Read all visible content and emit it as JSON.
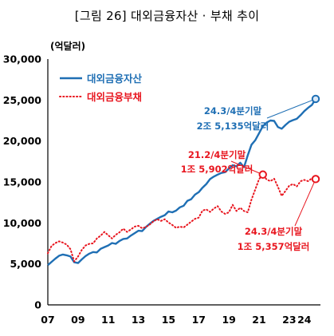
{
  "chart_data": {
    "type": "line",
    "title": "[그림 26] 대외금융자산 · 부채 추이",
    "unit_label": "(억달러)",
    "ylim": [
      0,
      30000
    ],
    "y_ticks": [
      "0",
      "5,000",
      "10,000",
      "15,000",
      "20,000",
      "25,000",
      "30,000"
    ],
    "y_tick_values": [
      0,
      5000,
      10000,
      15000,
      20000,
      25000,
      30000
    ],
    "xlim": [
      2007,
      2024.75
    ],
    "x_ticks": [
      "07",
      "09",
      "11",
      "13",
      "15",
      "17",
      "19",
      "21",
      "23",
      "24"
    ],
    "x_tick_values": [
      2007,
      2009,
      2011,
      2013,
      2015,
      2017,
      2019,
      2021,
      2023,
      2024
    ],
    "legend_position": "top-left",
    "series": [
      {
        "name": "대외금융자산",
        "color": "#1f6fb4",
        "style": "solid",
        "x": [
          2007.0,
          2007.25,
          2007.5,
          2007.75,
          2008.0,
          2008.25,
          2008.5,
          2008.75,
          2009.0,
          2009.25,
          2009.5,
          2009.75,
          2010.0,
          2010.25,
          2010.5,
          2010.75,
          2011.0,
          2011.25,
          2011.5,
          2011.75,
          2012.0,
          2012.25,
          2012.5,
          2012.75,
          2013.0,
          2013.25,
          2013.5,
          2013.75,
          2014.0,
          2014.25,
          2014.5,
          2014.75,
          2015.0,
          2015.25,
          2015.5,
          2015.75,
          2016.0,
          2016.25,
          2016.5,
          2016.75,
          2017.0,
          2017.25,
          2017.5,
          2017.75,
          2018.0,
          2018.25,
          2018.5,
          2018.75,
          2019.0,
          2019.25,
          2019.5,
          2019.75,
          2020.0,
          2020.25,
          2020.5,
          2020.75,
          2021.0,
          2021.25,
          2021.5,
          2021.75,
          2022.0,
          2022.25,
          2022.5,
          2022.75,
          2023.0,
          2023.25,
          2023.5,
          2023.75,
          2024.0,
          2024.25,
          2024.5,
          2024.75
        ],
        "values": [
          4850,
          5250,
          5650,
          6000,
          6150,
          6050,
          5900,
          5200,
          5100,
          5550,
          5950,
          6250,
          6450,
          6400,
          6850,
          7050,
          7250,
          7550,
          7450,
          7800,
          8050,
          8100,
          8450,
          8750,
          9050,
          9000,
          9500,
          9900,
          10250,
          10500,
          10750,
          10950,
          11400,
          11300,
          11500,
          11900,
          12100,
          12700,
          12900,
          13450,
          13750,
          14300,
          14750,
          15350,
          15650,
          15900,
          16100,
          16200,
          16650,
          17050,
          16900,
          17350,
          16800,
          18250,
          19550,
          20100,
          20950,
          21800,
          22250,
          22500,
          22450,
          21700,
          21500,
          21950,
          22350,
          22550,
          22700,
          23150,
          23650,
          24050,
          24400,
          25135
        ]
      },
      {
        "name": "대외금융부채",
        "color": "#e8161f",
        "style": "dotted",
        "x": [
          2007.0,
          2007.25,
          2007.5,
          2007.75,
          2008.0,
          2008.25,
          2008.5,
          2008.75,
          2009.0,
          2009.25,
          2009.5,
          2009.75,
          2010.0,
          2010.25,
          2010.5,
          2010.75,
          2011.0,
          2011.25,
          2011.5,
          2011.75,
          2012.0,
          2012.25,
          2012.5,
          2012.75,
          2013.0,
          2013.25,
          2013.5,
          2013.75,
          2014.0,
          2014.25,
          2014.5,
          2014.75,
          2015.0,
          2015.25,
          2015.5,
          2015.75,
          2016.0,
          2016.25,
          2016.5,
          2016.75,
          2017.0,
          2017.25,
          2017.5,
          2017.75,
          2018.0,
          2018.25,
          2018.5,
          2018.75,
          2019.0,
          2019.25,
          2019.5,
          2019.75,
          2020.0,
          2020.25,
          2020.5,
          2020.75,
          2021.0,
          2021.25,
          2021.5,
          2021.75,
          2022.0,
          2022.25,
          2022.5,
          2022.75,
          2023.0,
          2023.25,
          2023.5,
          2023.75,
          2024.0,
          2024.25,
          2024.5,
          2024.75
        ],
        "values": [
          6300,
          7200,
          7550,
          7750,
          7600,
          7350,
          6800,
          5300,
          5900,
          6700,
          7250,
          7450,
          7500,
          8100,
          8450,
          8900,
          8500,
          8100,
          8550,
          8850,
          9300,
          8900,
          9200,
          9550,
          9650,
          9350,
          9500,
          9800,
          10200,
          10450,
          10250,
          10450,
          10050,
          9750,
          9400,
          9550,
          9450,
          9800,
          10150,
          10500,
          10650,
          11500,
          11650,
          11350,
          11750,
          12050,
          11400,
          11100,
          11300,
          12200,
          11450,
          11850,
          11450,
          11300,
          12850,
          14100,
          15350,
          15902,
          15300,
          15100,
          15400,
          14400,
          13300,
          13900,
          14550,
          14750,
          14450,
          15100,
          15250,
          15100,
          15450,
          15357
        ]
      }
    ],
    "annotations": [
      {
        "series": 0,
        "x": 2024.75,
        "y": 25135,
        "text": [
          "24.3/4분기말",
          "2조 5,135억달러"
        ],
        "color": "#1f6fb4"
      },
      {
        "series": 1,
        "x": 2021.25,
        "y": 15902,
        "text": [
          "21.2/4분기말",
          "1조 5,902억달러"
        ],
        "color": "#e8161f"
      },
      {
        "series": 1,
        "x": 2024.75,
        "y": 15357,
        "text": [
          "24.3/4분기말",
          "1조 5,357억달러"
        ],
        "color": "#e8161f"
      }
    ]
  }
}
